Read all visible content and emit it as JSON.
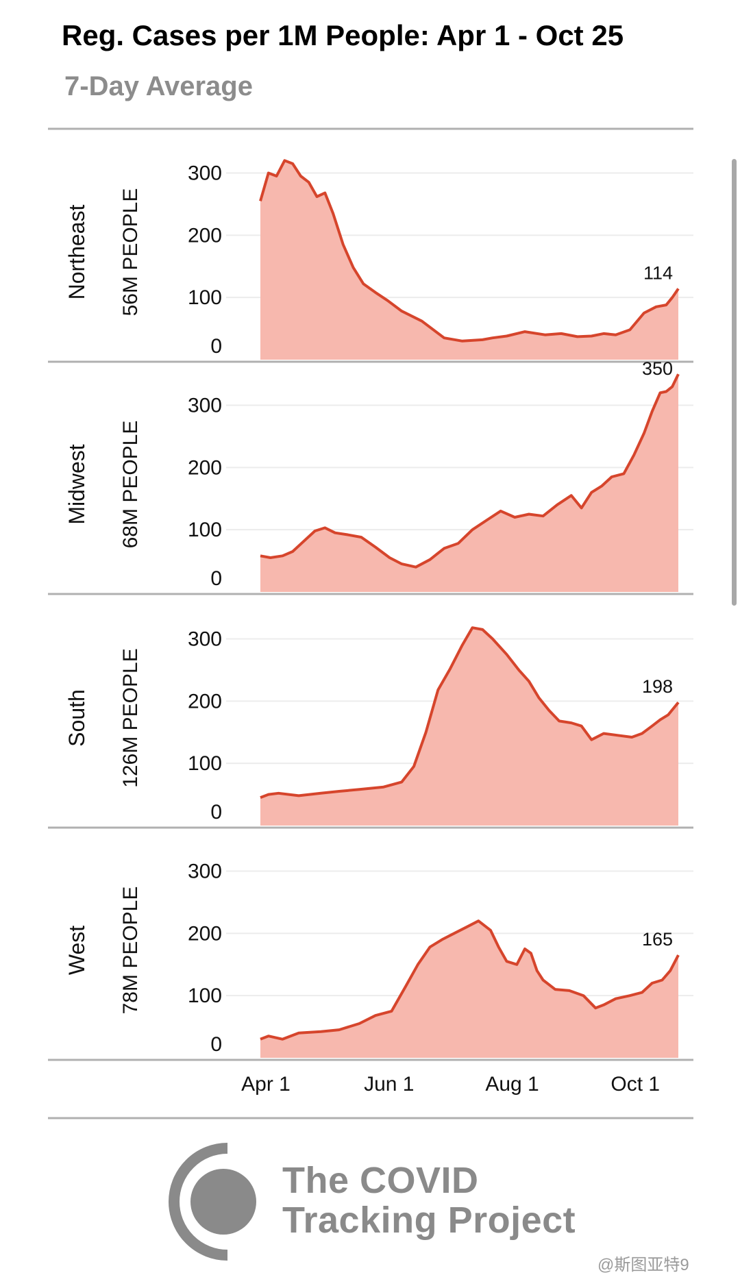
{
  "header": {
    "title": "Reg. Cases per 1M People: Apr 1 - Oct 25",
    "subtitle": "7-Day Average"
  },
  "colors": {
    "line": "#d6452c",
    "fill": "#f7b8ae",
    "axis": "#b0b0b0",
    "grid": "#ececec"
  },
  "chart_data": {
    "type": "area",
    "title": "Reg. Cases per 1M People: Apr 1 - Oct 25",
    "subtitle": "7-Day Average",
    "x_tick_labels": [
      "Apr 1",
      "Jun 1",
      "Aug 1",
      "Oct 1"
    ],
    "y_ticks": [
      0,
      100,
      200,
      300
    ],
    "ylim": [
      0,
      360
    ],
    "grid": true,
    "series": [
      {
        "name": "Northeast",
        "population_label": "56M PEOPLE",
        "end_label": "114",
        "x": [
          "2020-04-01",
          "2020-04-05",
          "2020-04-09",
          "2020-04-13",
          "2020-04-17",
          "2020-04-21",
          "2020-04-25",
          "2020-04-29",
          "2020-05-03",
          "2020-05-07",
          "2020-05-12",
          "2020-05-17",
          "2020-05-22",
          "2020-05-28",
          "2020-06-03",
          "2020-06-10",
          "2020-06-20",
          "2020-07-01",
          "2020-07-10",
          "2020-07-20",
          "2020-07-25",
          "2020-08-01",
          "2020-08-10",
          "2020-08-20",
          "2020-08-28",
          "2020-09-05",
          "2020-09-12",
          "2020-09-18",
          "2020-09-24",
          "2020-10-01",
          "2020-10-08",
          "2020-10-14",
          "2020-10-19",
          "2020-10-22",
          "2020-10-25"
        ],
        "values": [
          255,
          300,
          295,
          320,
          315,
          295,
          285,
          262,
          268,
          235,
          185,
          148,
          122,
          108,
          95,
          78,
          62,
          35,
          30,
          32,
          35,
          38,
          45,
          40,
          42,
          37,
          38,
          42,
          40,
          48,
          75,
          85,
          88,
          100,
          114
        ]
      },
      {
        "name": "Midwest",
        "population_label": "68M PEOPLE",
        "end_label": "350",
        "x": [
          "2020-04-01",
          "2020-04-06",
          "2020-04-12",
          "2020-04-17",
          "2020-04-22",
          "2020-04-28",
          "2020-05-03",
          "2020-05-08",
          "2020-05-14",
          "2020-05-21",
          "2020-05-28",
          "2020-06-04",
          "2020-06-10",
          "2020-06-17",
          "2020-06-24",
          "2020-07-01",
          "2020-07-08",
          "2020-07-15",
          "2020-07-22",
          "2020-07-29",
          "2020-08-05",
          "2020-08-12",
          "2020-08-19",
          "2020-08-26",
          "2020-09-02",
          "2020-09-07",
          "2020-09-12",
          "2020-09-17",
          "2020-09-22",
          "2020-09-28",
          "2020-10-03",
          "2020-10-08",
          "2020-10-12",
          "2020-10-16",
          "2020-10-19",
          "2020-10-22",
          "2020-10-25"
        ],
        "values": [
          58,
          55,
          58,
          65,
          80,
          98,
          103,
          95,
          92,
          88,
          72,
          55,
          45,
          40,
          52,
          70,
          78,
          100,
          115,
          130,
          120,
          125,
          122,
          140,
          155,
          135,
          160,
          170,
          185,
          190,
          220,
          255,
          290,
          320,
          322,
          330,
          350
        ]
      },
      {
        "name": "South",
        "population_label": "126M PEOPLE",
        "end_label": "198",
        "x": [
          "2020-04-01",
          "2020-04-05",
          "2020-04-10",
          "2020-04-20",
          "2020-05-01",
          "2020-05-10",
          "2020-05-20",
          "2020-06-01",
          "2020-06-10",
          "2020-06-16",
          "2020-06-22",
          "2020-06-28",
          "2020-07-04",
          "2020-07-10",
          "2020-07-15",
          "2020-07-20",
          "2020-07-25",
          "2020-08-01",
          "2020-08-07",
          "2020-08-12",
          "2020-08-17",
          "2020-08-22",
          "2020-08-27",
          "2020-09-02",
          "2020-09-07",
          "2020-09-12",
          "2020-09-18",
          "2020-09-25",
          "2020-10-02",
          "2020-10-07",
          "2020-10-12",
          "2020-10-16",
          "2020-10-20",
          "2020-10-25"
        ],
        "values": [
          45,
          50,
          52,
          48,
          52,
          55,
          58,
          62,
          70,
          95,
          150,
          218,
          252,
          290,
          318,
          315,
          300,
          275,
          250,
          232,
          205,
          185,
          168,
          165,
          160,
          138,
          148,
          145,
          142,
          148,
          160,
          170,
          178,
          198
        ]
      },
      {
        "name": "West",
        "population_label": "78M PEOPLE",
        "end_label": "165",
        "x": [
          "2020-04-01",
          "2020-04-05",
          "2020-04-12",
          "2020-04-20",
          "2020-05-01",
          "2020-05-10",
          "2020-05-20",
          "2020-05-28",
          "2020-06-05",
          "2020-06-12",
          "2020-06-18",
          "2020-06-24",
          "2020-06-30",
          "2020-07-06",
          "2020-07-12",
          "2020-07-18",
          "2020-07-24",
          "2020-07-28",
          "2020-08-01",
          "2020-08-06",
          "2020-08-10",
          "2020-08-13",
          "2020-08-16",
          "2020-08-19",
          "2020-08-25",
          "2020-09-01",
          "2020-09-08",
          "2020-09-14",
          "2020-09-18",
          "2020-09-24",
          "2020-10-01",
          "2020-10-07",
          "2020-10-12",
          "2020-10-17",
          "2020-10-21",
          "2020-10-25"
        ],
        "values": [
          30,
          35,
          30,
          40,
          42,
          45,
          55,
          68,
          75,
          115,
          150,
          178,
          190,
          200,
          210,
          220,
          205,
          178,
          155,
          150,
          175,
          168,
          140,
          125,
          110,
          108,
          100,
          80,
          85,
          95,
          100,
          105,
          120,
          125,
          140,
          165
        ]
      }
    ]
  },
  "footer": {
    "logo_line1": "The COVID",
    "logo_line2": "Tracking Project",
    "watermark": "@斯图亚特9"
  }
}
